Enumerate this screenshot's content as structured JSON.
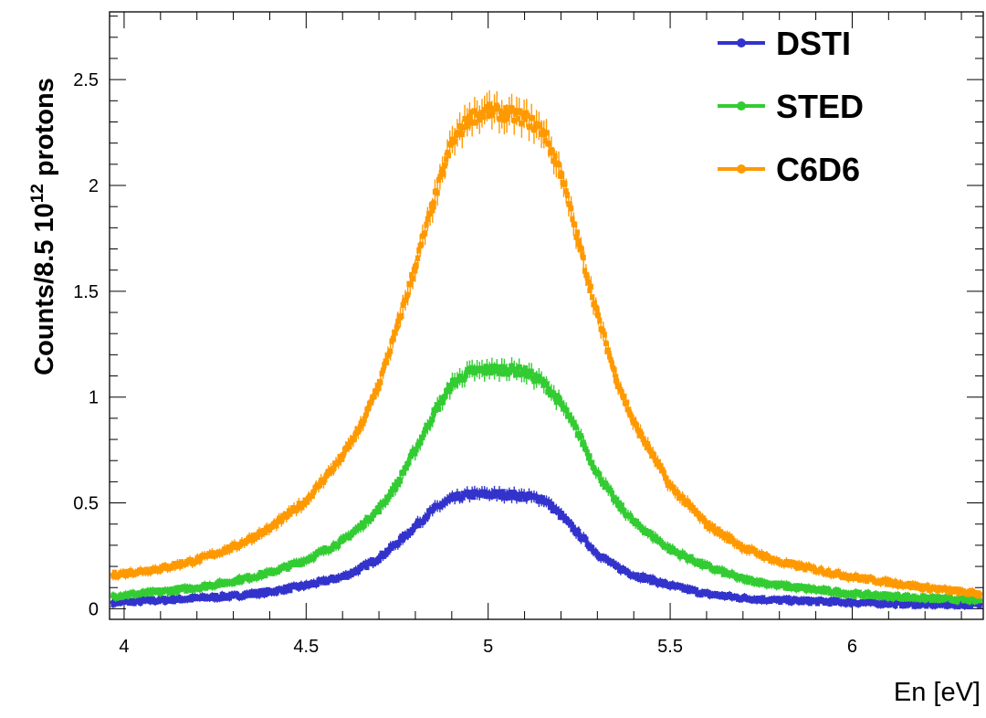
{
  "chart_data": {
    "type": "scatter",
    "xlabel": "En [eV]",
    "ylabel_prefix": "Counts/8.5 10",
    "ylabel_exponent": "12",
    "ylabel_suffix": " protons",
    "xlim": [
      3.96,
      6.36
    ],
    "ylim": [
      -0.05,
      2.82
    ],
    "x_ticks": [
      4,
      4.5,
      5,
      5.5,
      6
    ],
    "x_tick_labels": [
      "4",
      "4.5",
      "5",
      "5.5",
      "6"
    ],
    "y_ticks": [
      0,
      0.5,
      1,
      1.5,
      2,
      2.5
    ],
    "y_tick_labels": [
      "0",
      "0.5",
      "1",
      "1.5",
      "2",
      "2.5"
    ],
    "grid": false,
    "legend_position": "top-right",
    "x": [
      3.97,
      4.1,
      4.2,
      4.3,
      4.4,
      4.5,
      4.6,
      4.65,
      4.7,
      4.75,
      4.8,
      4.85,
      4.9,
      4.95,
      5.0,
      5.05,
      5.1,
      5.15,
      5.2,
      5.25,
      5.3,
      5.35,
      5.4,
      5.5,
      5.6,
      5.7,
      5.8,
      6.0,
      6.2,
      6.35
    ],
    "series": [
      {
        "name": "DSTI",
        "color": "#3333cc",
        "values": [
          0.03,
          0.04,
          0.05,
          0.06,
          0.08,
          0.11,
          0.15,
          0.19,
          0.24,
          0.31,
          0.39,
          0.47,
          0.52,
          0.54,
          0.54,
          0.54,
          0.53,
          0.52,
          0.44,
          0.35,
          0.26,
          0.2,
          0.16,
          0.11,
          0.07,
          0.05,
          0.04,
          0.03,
          0.02,
          0.02
        ]
      },
      {
        "name": "STED",
        "color": "#33cc33",
        "values": [
          0.06,
          0.08,
          0.1,
          0.13,
          0.17,
          0.23,
          0.32,
          0.39,
          0.47,
          0.59,
          0.75,
          0.92,
          1.06,
          1.12,
          1.13,
          1.13,
          1.12,
          1.07,
          0.97,
          0.82,
          0.64,
          0.51,
          0.41,
          0.28,
          0.2,
          0.14,
          0.11,
          0.07,
          0.05,
          0.04
        ]
      },
      {
        "name": "C6D6",
        "color": "#ff9900",
        "values": [
          0.16,
          0.19,
          0.23,
          0.29,
          0.38,
          0.51,
          0.72,
          0.86,
          1.06,
          1.33,
          1.62,
          1.92,
          2.2,
          2.32,
          2.35,
          2.34,
          2.32,
          2.26,
          2.06,
          1.72,
          1.39,
          1.1,
          0.88,
          0.58,
          0.4,
          0.29,
          0.22,
          0.15,
          0.1,
          0.07
        ]
      }
    ]
  }
}
